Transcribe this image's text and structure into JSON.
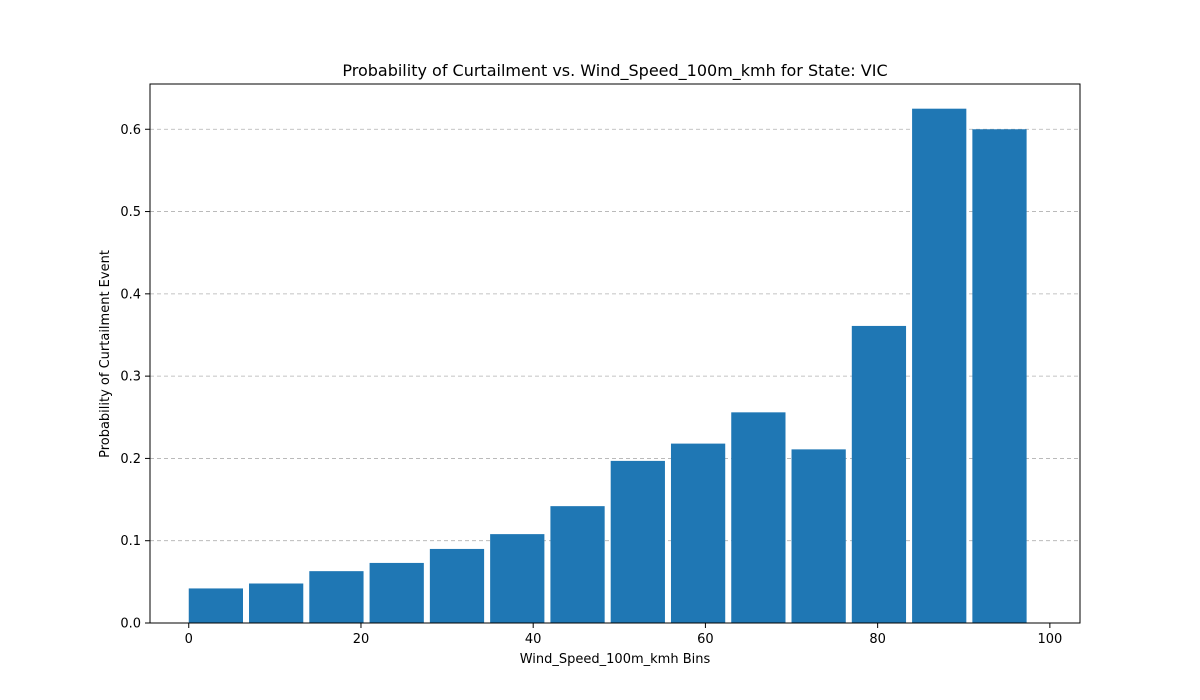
{
  "chart_data": {
    "type": "bar",
    "title": "Probability of Curtailment vs. Wind_Speed_100m_kmh for State: VIC",
    "xlabel": "Wind_Speed_100m_kmh Bins",
    "ylabel": "Probability of Curtailment Event",
    "bin_width": 7,
    "bins": [
      {
        "start": 0,
        "end": 7,
        "value": 0.042
      },
      {
        "start": 7,
        "end": 14,
        "value": 0.048
      },
      {
        "start": 14,
        "end": 21,
        "value": 0.063
      },
      {
        "start": 21,
        "end": 28,
        "value": 0.073
      },
      {
        "start": 28,
        "end": 35,
        "value": 0.09
      },
      {
        "start": 35,
        "end": 42,
        "value": 0.108
      },
      {
        "start": 42,
        "end": 49,
        "value": 0.142
      },
      {
        "start": 49,
        "end": 56,
        "value": 0.197
      },
      {
        "start": 56,
        "end": 63,
        "value": 0.218
      },
      {
        "start": 63,
        "end": 70,
        "value": 0.256
      },
      {
        "start": 70,
        "end": 77,
        "value": 0.211
      },
      {
        "start": 77,
        "end": 84,
        "value": 0.361
      },
      {
        "start": 84,
        "end": 91,
        "value": 0.625
      },
      {
        "start": 91,
        "end": 98,
        "value": 0.6
      }
    ],
    "xlim": [
      -4.5,
      103.5
    ],
    "ylim": [
      0,
      0.655
    ],
    "xticks": [
      0,
      20,
      40,
      60,
      80,
      100
    ],
    "xtick_labels": [
      "0",
      "20",
      "40",
      "60",
      "80",
      "100"
    ],
    "yticks": [
      0,
      0.1,
      0.2,
      0.3,
      0.4,
      0.5,
      0.6
    ],
    "ytick_labels": [
      "0.0",
      "0.1",
      "0.2",
      "0.3",
      "0.4",
      "0.5",
      "0.6"
    ],
    "grid": "y-dashed",
    "bar_color": "#1f77b4"
  }
}
